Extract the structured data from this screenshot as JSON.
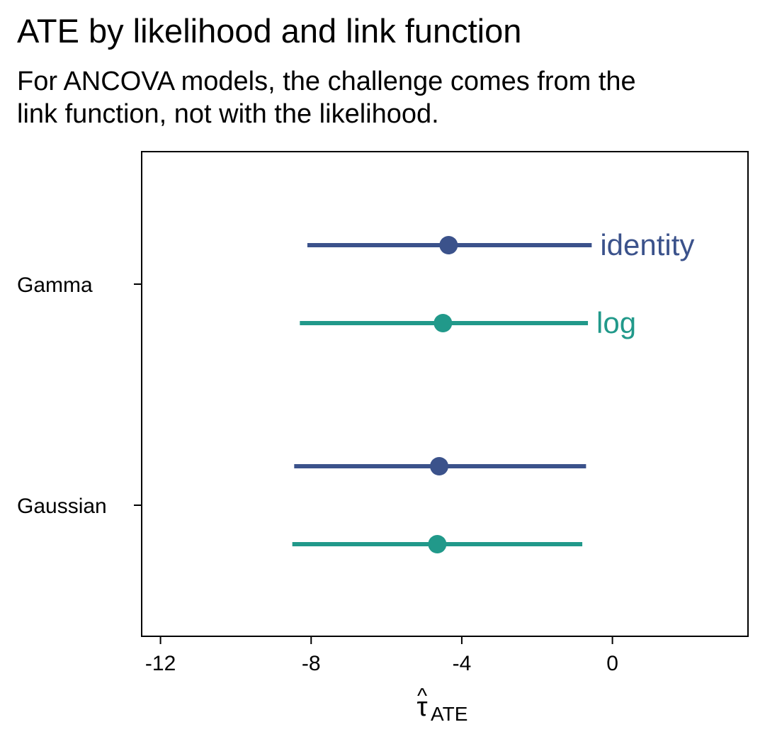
{
  "chart_data": {
    "type": "errorbar",
    "title": "ATE by likelihood and link function",
    "subtitle_lines": [
      "For ANCOVA models, the challenge comes from the",
      "link function, not with the likelihood."
    ],
    "xlabel_symbol": "τ",
    "xlabel_hat": "^",
    "xlabel_subscript": "ATE",
    "ylabel": "",
    "xlim": [
      -12.5,
      3.6
    ],
    "x_ticks": [
      -12,
      -8,
      -4,
      0
    ],
    "x_tick_labels": [
      "-12",
      "-8",
      "-4",
      "0"
    ],
    "categories": [
      "Gamma",
      "Gaussian"
    ],
    "legend_placement": "inline-right-of-gamma-intervals",
    "grid": false,
    "series": [
      {
        "name": "identity",
        "color": "#3b528b",
        "points": [
          {
            "category": "Gamma",
            "estimate": -4.35,
            "lower": -8.1,
            "upper": -0.55
          },
          {
            "category": "Gaussian",
            "estimate": -4.6,
            "lower": -8.45,
            "upper": -0.7
          }
        ]
      },
      {
        "name": "log",
        "color": "#21998a",
        "points": [
          {
            "category": "Gamma",
            "estimate": -4.5,
            "lower": -8.3,
            "upper": -0.65
          },
          {
            "category": "Gaussian",
            "estimate": -4.65,
            "lower": -8.5,
            "upper": -0.8
          }
        ]
      }
    ]
  }
}
